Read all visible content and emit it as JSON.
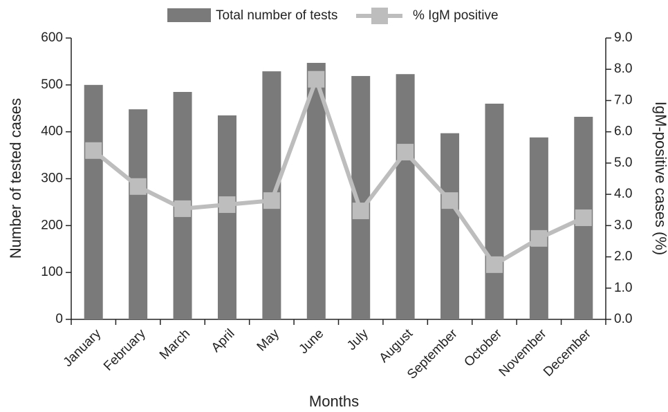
{
  "chart_data": {
    "type": "bar-line",
    "categories": [
      "January",
      "February",
      "March",
      "April",
      "May",
      "June",
      "July",
      "August",
      "September",
      "October",
      "November",
      "December"
    ],
    "series": [
      {
        "name": "Total number of tests",
        "type": "bar",
        "color": "#7a7a7a",
        "values": [
          500,
          448,
          485,
          435,
          529,
          547,
          519,
          523,
          397,
          460,
          388,
          432
        ]
      },
      {
        "name": "% IgM positive",
        "type": "line",
        "axis": "y2",
        "color": "#bdbdbd",
        "values": [
          5.4,
          4.25,
          3.54,
          3.67,
          3.8,
          7.68,
          3.47,
          5.35,
          3.8,
          1.75,
          2.59,
          3.25
        ]
      }
    ],
    "xlabel": "Months",
    "ylabel": "Number of tested cases",
    "y2label": "IgM-positive cases (%)",
    "ylim": [
      0,
      600
    ],
    "yticks": [
      0,
      100,
      200,
      300,
      400,
      500,
      600
    ],
    "y2lim": [
      0,
      9
    ],
    "y2ticks": [
      {
        "value": 0,
        "label": "0.0"
      },
      {
        "value": 1,
        "label": "1.0"
      },
      {
        "value": 2,
        "label": "2.0"
      },
      {
        "value": 3,
        "label": "3.0"
      },
      {
        "value": 4,
        "label": "4.0"
      },
      {
        "value": 5,
        "label": "5.0"
      },
      {
        "value": 6,
        "label": "6.0"
      },
      {
        "value": 7,
        "label": "7.0"
      },
      {
        "value": 8,
        "label": "8.0"
      },
      {
        "value": 9,
        "label": "9.0"
      }
    ],
    "legend": "top"
  }
}
